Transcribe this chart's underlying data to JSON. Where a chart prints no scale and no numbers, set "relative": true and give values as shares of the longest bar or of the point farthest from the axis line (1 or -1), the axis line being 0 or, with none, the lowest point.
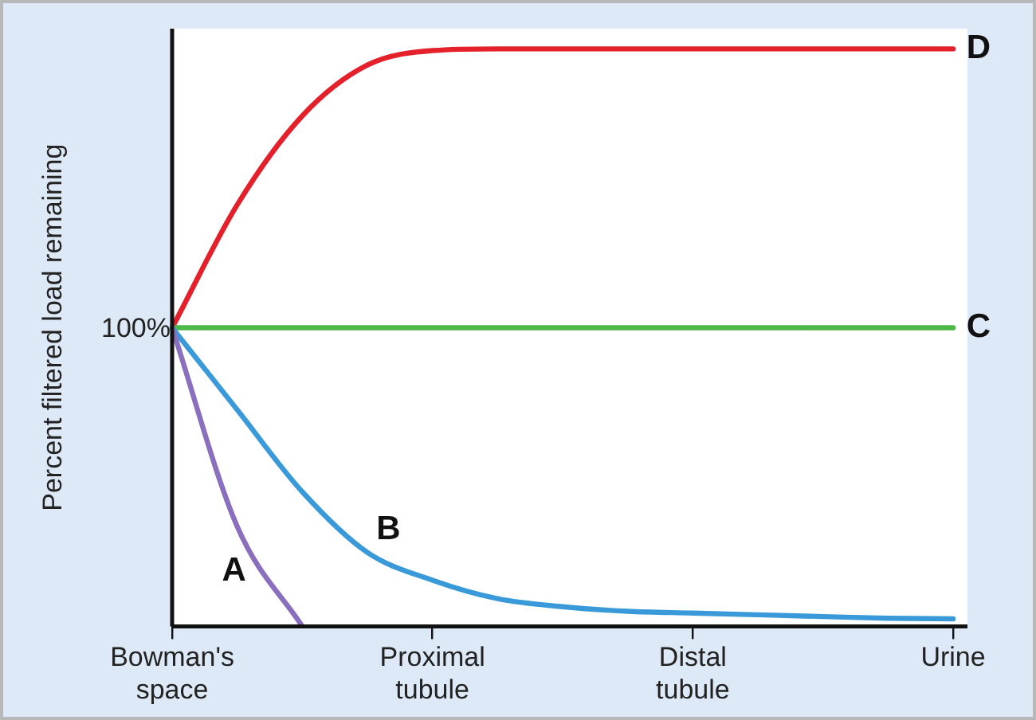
{
  "chart_data": {
    "type": "line",
    "relative": true,
    "ylabel": "Percent filtered load remaining",
    "categories": [
      "Bowman's space",
      null,
      null,
      null,
      "Proximal tubule",
      null,
      null,
      null,
      "Distal tubule",
      null,
      null,
      null,
      "Urine"
    ],
    "series": [
      {
        "name": "A",
        "color": "#8a6fbf",
        "values": [
          0.517,
          0.173,
          0,
          null,
          null,
          null,
          null,
          null,
          null,
          null,
          null,
          null,
          null
        ]
      },
      {
        "name": "B",
        "color": "#3a9ad9",
        "values": [
          0.517,
          0.375,
          0.233,
          0.128,
          0.08,
          0.048,
          0.034,
          0.026,
          0.023,
          0.02,
          0.017,
          0.014,
          0.013
        ]
      },
      {
        "name": "C",
        "color": "#4db848",
        "values": [
          0.517,
          0.517,
          0.517,
          0.517,
          0.517,
          0.517,
          0.517,
          0.517,
          0.517,
          0.517,
          0.517,
          0.517,
          0.517
        ]
      },
      {
        "name": "D",
        "color": "#e4202a",
        "values": [
          0.517,
          0.73,
          0.884,
          0.972,
          0.997,
          1,
          1,
          1,
          1,
          1,
          1,
          1,
          1
        ]
      }
    ],
    "annotations": [
      {
        "text": "100%",
        "x": "Bowman's space",
        "y": 0.517
      }
    ],
    "grid": false,
    "legend": false,
    "marker": "none",
    "line_style": "solid"
  }
}
